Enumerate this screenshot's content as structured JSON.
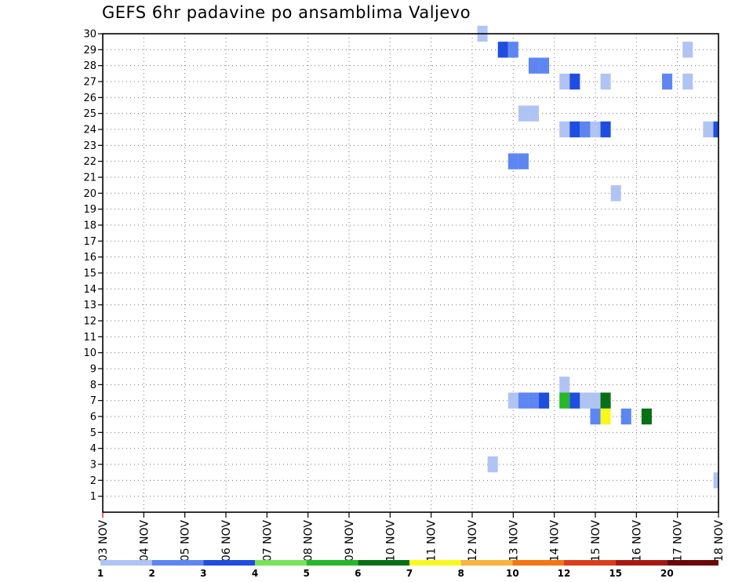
{
  "chart_data": {
    "type": "heatmap",
    "title": "GEFS 6hr padavine po ansamblima Valjevo",
    "xlabel": "",
    "ylabel": "",
    "x_ticks": [
      "03 NOV",
      "04 NOV",
      "05 NOV",
      "06 NOV",
      "07 NOV",
      "08 NOV",
      "09 NOV",
      "10 NOV",
      "11 NOV",
      "12 NOV",
      "13 NOV",
      "14 NOV",
      "15 NOV",
      "16 NOV",
      "17 NOV",
      "18 NOV"
    ],
    "x_range": [
      "03 NOV 00Z",
      "18 NOV 00Z"
    ],
    "time_step_hours": 6,
    "y_ticks": [
      1,
      2,
      3,
      4,
      5,
      6,
      7,
      8,
      9,
      10,
      11,
      12,
      13,
      14,
      15,
      16,
      17,
      18,
      19,
      20,
      21,
      22,
      23,
      24,
      25,
      26,
      27,
      28,
      29,
      30
    ],
    "ylim": [
      0,
      30
    ],
    "grid": true,
    "colorbar": {
      "labels": [
        "1",
        "2",
        "3",
        "4",
        "5",
        "6",
        "7",
        "8",
        "10",
        "12",
        "15",
        "20"
      ],
      "colors": [
        "#b0c4f4",
        "#5e86f2",
        "#1e4ee0",
        "#78e25a",
        "#26b82a",
        "#087014",
        "#f8f81e",
        "#f8b43c",
        "#f47614",
        "#dc3c1a",
        "#a81812",
        "#6a0808"
      ]
    },
    "cells": [
      {
        "member": 30,
        "time": "12 NOV 06Z",
        "value": 1
      },
      {
        "member": 29,
        "time": "12 NOV 18Z",
        "value": 3
      },
      {
        "member": 29,
        "time": "13 NOV 00Z",
        "value": 2
      },
      {
        "member": 29,
        "time": "17 NOV 06Z",
        "value": 1
      },
      {
        "member": 28,
        "time": "13 NOV 12Z",
        "value": 2
      },
      {
        "member": 28,
        "time": "13 NOV 18Z",
        "value": 2
      },
      {
        "member": 27,
        "time": "14 NOV 06Z",
        "value": 1
      },
      {
        "member": 27,
        "time": "14 NOV 12Z",
        "value": 3
      },
      {
        "member": 27,
        "time": "15 NOV 06Z",
        "value": 1
      },
      {
        "member": 27,
        "time": "16 NOV 18Z",
        "value": 2
      },
      {
        "member": 27,
        "time": "17 NOV 06Z",
        "value": 1
      },
      {
        "member": 25,
        "time": "13 NOV 06Z",
        "value": 1
      },
      {
        "member": 25,
        "time": "13 NOV 12Z",
        "value": 1
      },
      {
        "member": 24,
        "time": "14 NOV 06Z",
        "value": 1
      },
      {
        "member": 24,
        "time": "14 NOV 12Z",
        "value": 3
      },
      {
        "member": 24,
        "time": "14 NOV 18Z",
        "value": 2
      },
      {
        "member": 24,
        "time": "15 NOV 00Z",
        "value": 1
      },
      {
        "member": 24,
        "time": "15 NOV 06Z",
        "value": 3
      },
      {
        "member": 24,
        "time": "17 NOV 18Z",
        "value": 1
      },
      {
        "member": 24,
        "time": "18 NOV 00Z",
        "value": 3
      },
      {
        "member": 22,
        "time": "13 NOV 00Z",
        "value": 2
      },
      {
        "member": 22,
        "time": "13 NOV 06Z",
        "value": 2
      },
      {
        "member": 20,
        "time": "15 NOV 12Z",
        "value": 1
      },
      {
        "member": 8,
        "time": "14 NOV 06Z",
        "value": 1
      },
      {
        "member": 7,
        "time": "13 NOV 00Z",
        "value": 1
      },
      {
        "member": 7,
        "time": "13 NOV 06Z",
        "value": 2
      },
      {
        "member": 7,
        "time": "13 NOV 12Z",
        "value": 2
      },
      {
        "member": 7,
        "time": "13 NOV 18Z",
        "value": 3
      },
      {
        "member": 7,
        "time": "14 NOV 06Z",
        "value": 5
      },
      {
        "member": 7,
        "time": "14 NOV 12Z",
        "value": 3
      },
      {
        "member": 7,
        "time": "14 NOV 18Z",
        "value": 1
      },
      {
        "member": 7,
        "time": "15 NOV 00Z",
        "value": 1
      },
      {
        "member": 7,
        "time": "15 NOV 06Z",
        "value": 6
      },
      {
        "member": 6,
        "time": "15 NOV 00Z",
        "value": 2
      },
      {
        "member": 6,
        "time": "15 NOV 06Z",
        "value": 7
      },
      {
        "member": 6,
        "time": "15 NOV 18Z",
        "value": 2
      },
      {
        "member": 6,
        "time": "16 NOV 06Z",
        "value": 6
      },
      {
        "member": 3,
        "time": "12 NOV 12Z",
        "value": 1
      },
      {
        "member": 2,
        "time": "18 NOV 00Z",
        "value": 1
      }
    ]
  }
}
